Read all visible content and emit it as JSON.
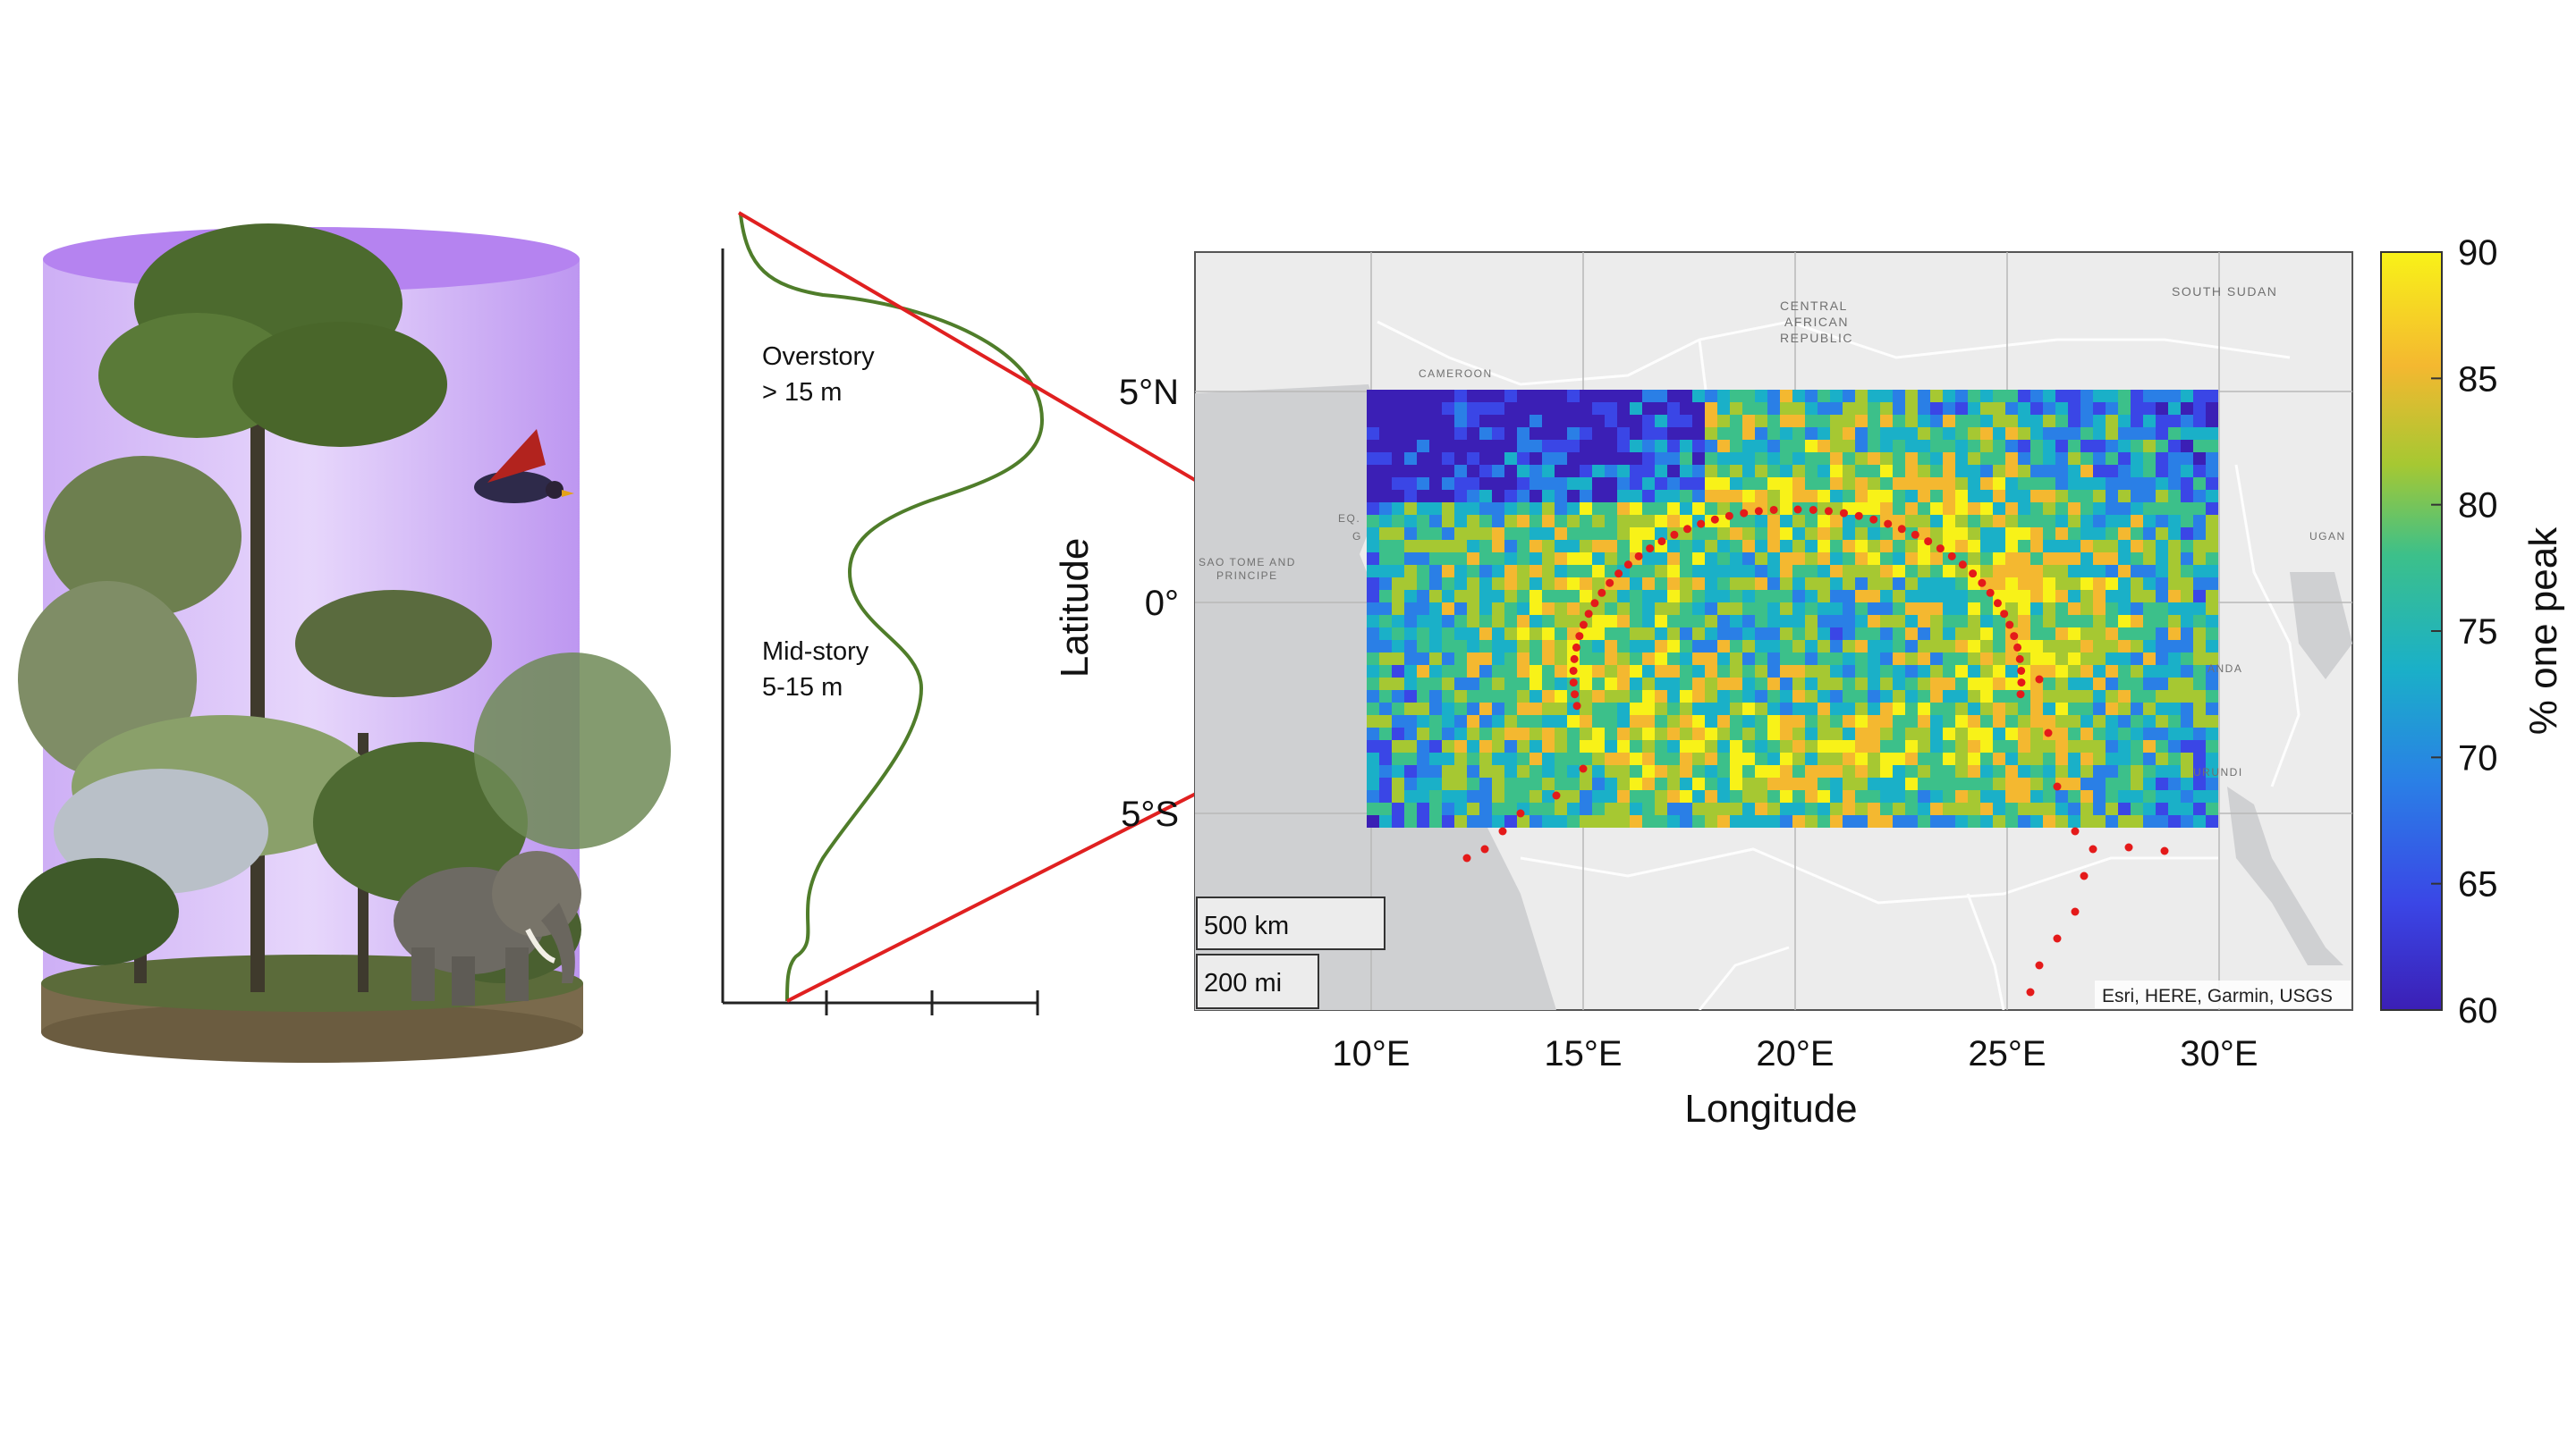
{
  "illustration": {
    "icons": [
      "rainforest-tree-icon",
      "bird-icon",
      "elephant-icon",
      "forest-floor-icon"
    ],
    "cylinder_color": "#b98bf0"
  },
  "profile": {
    "overstory_label": "Overstory",
    "overstory_range": "> 15 m",
    "midstory_label": "Mid-story",
    "midstory_range": "5-15 m",
    "curve_color": "#4f7d2a",
    "connector_color": "#e02020"
  },
  "map": {
    "lat_labels": [
      "5°N",
      "0°",
      "5°S"
    ],
    "lon_labels": [
      "10°E",
      "15°E",
      "20°E",
      "25°E",
      "30°E"
    ],
    "xlabel": "Longitude",
    "ylabel": "Latitude",
    "place_labels": {
      "car": [
        "CENTRAL",
        "AFRICAN",
        "REPUBLIC"
      ],
      "south_sudan": "SOUTH SUDAN",
      "cameroon": "CAMEROON",
      "sao_tome": [
        "SAO TOME AND",
        "PRINCIPE"
      ],
      "eq_guinea": "EQ.",
      "gabon": "G",
      "uganda": "UGAN",
      "rwanda": "ANDA",
      "burundi": "URUNDI"
    },
    "scale_km": "500 km",
    "scale_mi": "200 mi",
    "attribution": "Esri, HERE, Garmin, USGS",
    "basemap_land_color": "#ececec",
    "basemap_water_color": "#cfd0d2",
    "boundary_color": "#a61010"
  },
  "colorbar": {
    "label": "% one peak",
    "ticks": [
      "90",
      "85",
      "80",
      "75",
      "70",
      "65",
      "60"
    ],
    "range": [
      60,
      90
    ],
    "colors": [
      "#3b1fb5",
      "#3a46e6",
      "#2a7fe6",
      "#1ab0c8",
      "#3cc08a",
      "#a6c832",
      "#f4b830",
      "#f8f218"
    ]
  }
}
